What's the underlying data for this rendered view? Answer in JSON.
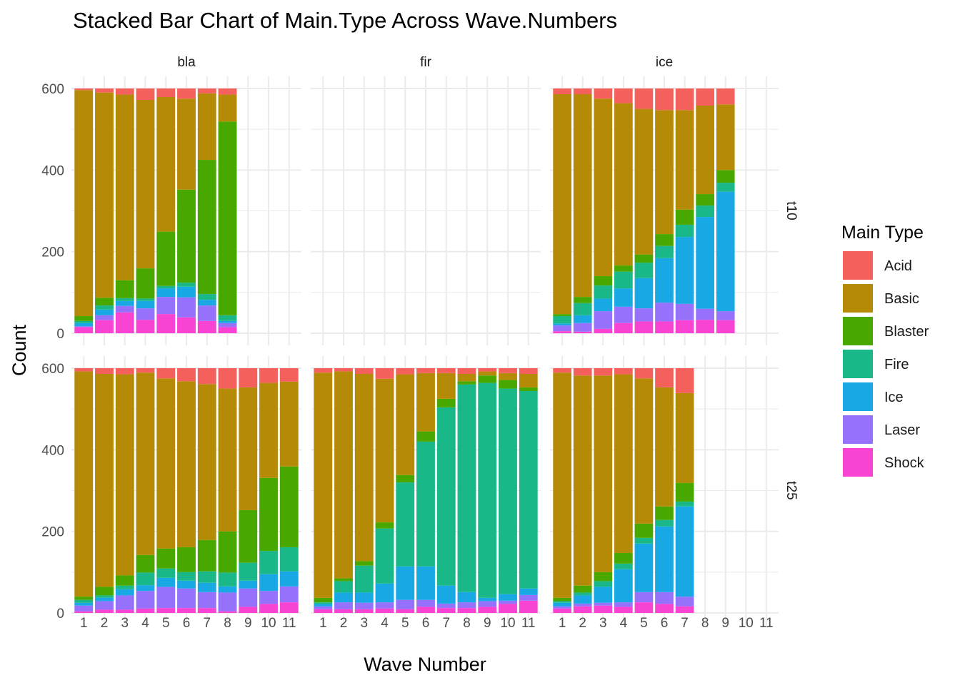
{
  "chart_data": {
    "type": "bar",
    "stacked": true,
    "title": "Stacked Bar Chart of Main.Type Across Wave.Numbers",
    "xlabel": "Wave Number",
    "ylabel": "Count",
    "ylim": [
      0,
      600
    ],
    "y_ticks": [
      "0",
      "200",
      "400",
      "600"
    ],
    "x_ticks": [
      "1",
      "2",
      "3",
      "4",
      "5",
      "6",
      "7",
      "8",
      "9",
      "10",
      "11"
    ],
    "grid": true,
    "legend": {
      "title": "Main Type",
      "placement": "right",
      "entries": [
        "Acid",
        "Basic",
        "Blaster",
        "Fire",
        "Ice",
        "Laser",
        "Shock"
      ]
    },
    "colors": {
      "Acid": "#F4615D",
      "Basic": "#B58A06",
      "Blaster": "#49A800",
      "Fire": "#1AB888",
      "Ice": "#18A8E4",
      "Laser": "#9672FC",
      "Shock": "#F943D2"
    },
    "stack_order_bottom_up": [
      "Shock",
      "Laser",
      "Ice",
      "Fire",
      "Blaster",
      "Basic",
      "Acid"
    ],
    "facet_columns": [
      "bla",
      "fir",
      "ice"
    ],
    "facet_rows": [
      "t10",
      "t25"
    ],
    "panels": [
      {
        "col": "bla",
        "row": "t10",
        "bars": [
          [
            15,
            2,
            8,
            5,
            12,
            554,
            4
          ],
          [
            32,
            12,
            14,
            10,
            19,
            503,
            10
          ],
          [
            51,
            16,
            12,
            7,
            44,
            455,
            15
          ],
          [
            33,
            28,
            18,
            6,
            74,
            413,
            28
          ],
          [
            47,
            42,
            21,
            6,
            133,
            330,
            21
          ],
          [
            39,
            49,
            26,
            10,
            228,
            223,
            25
          ],
          [
            30,
            38,
            14,
            14,
            329,
            163,
            12
          ],
          [
            15,
            10,
            5,
            14,
            475,
            66,
            15
          ]
        ]
      },
      {
        "col": "fir",
        "row": "t10",
        "bars": []
      },
      {
        "col": "ice",
        "row": "t10",
        "bars": [
          [
            5,
            14,
            5,
            18,
            5,
            539,
            14
          ],
          [
            4,
            21,
            19,
            30,
            15,
            497,
            14
          ],
          [
            11,
            43,
            31,
            32,
            23,
            435,
            25
          ],
          [
            25,
            40,
            45,
            41,
            15,
            398,
            36
          ],
          [
            29,
            32,
            74,
            38,
            20,
            357,
            50
          ],
          [
            29,
            46,
            109,
            30,
            29,
            304,
            53
          ],
          [
            32,
            40,
            164,
            30,
            37,
            244,
            53
          ],
          [
            33,
            27,
            225,
            28,
            28,
            217,
            42
          ],
          [
            32,
            22,
            293,
            22,
            31,
            161,
            39
          ]
        ]
      },
      {
        "col": "bla",
        "row": "t25",
        "bars": [
          [
            4,
            14,
            7,
            7,
            8,
            552,
            8
          ],
          [
            8,
            21,
            8,
            6,
            21,
            522,
            14
          ],
          [
            8,
            35,
            15,
            9,
            25,
            493,
            15
          ],
          [
            11,
            43,
            14,
            31,
            43,
            447,
            11
          ],
          [
            12,
            52,
            22,
            23,
            49,
            417,
            25
          ],
          [
            12,
            48,
            19,
            21,
            61,
            407,
            32
          ],
          [
            12,
            39,
            23,
            28,
            77,
            382,
            39
          ],
          [
            4,
            46,
            15,
            34,
            101,
            350,
            50
          ],
          [
            15,
            45,
            19,
            44,
            129,
            301,
            47
          ],
          [
            22,
            32,
            41,
            57,
            179,
            233,
            36
          ],
          [
            26,
            39,
            37,
            59,
            198,
            208,
            33
          ]
        ]
      },
      {
        "col": "fir",
        "row": "t25",
        "bars": [
          [
            9,
            7,
            6,
            4,
            11,
            552,
            11
          ],
          [
            9,
            17,
            24,
            28,
            7,
            507,
            8
          ],
          [
            9,
            16,
            25,
            66,
            11,
            459,
            14
          ],
          [
            11,
            15,
            46,
            135,
            15,
            352,
            26
          ],
          [
            9,
            23,
            82,
            206,
            18,
            247,
            15
          ],
          [
            15,
            17,
            82,
            306,
            25,
            143,
            12
          ],
          [
            12,
            11,
            44,
            437,
            21,
            63,
            12
          ],
          [
            12,
            14,
            25,
            509,
            8,
            18,
            14
          ],
          [
            15,
            14,
            8,
            527,
            18,
            10,
            8
          ],
          [
            22,
            8,
            16,
            504,
            21,
            17,
            12
          ],
          [
            30,
            14,
            16,
            484,
            9,
            33,
            14
          ]
        ]
      },
      {
        "col": "ice",
        "row": "t25",
        "bars": [
          [
            11,
            5,
            9,
            4,
            8,
            552,
            11
          ],
          [
            16,
            7,
            20,
            7,
            17,
            515,
            18
          ],
          [
            18,
            7,
            39,
            14,
            22,
            482,
            18
          ],
          [
            15,
            11,
            81,
            14,
            26,
            438,
            15
          ],
          [
            26,
            25,
            119,
            14,
            35,
            356,
            25
          ],
          [
            22,
            29,
            161,
            16,
            33,
            292,
            47
          ],
          [
            16,
            24,
            221,
            12,
            46,
            220,
            61
          ]
        ]
      }
    ]
  }
}
